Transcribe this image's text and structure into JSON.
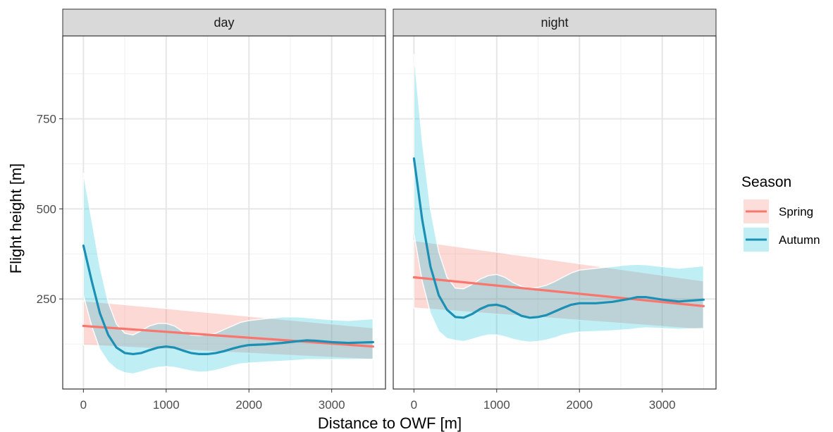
{
  "chart_data": {
    "type": "line",
    "xlabel": "Distance to OWF [m]",
    "ylabel": "Flight height [m]",
    "xlim": [
      -250,
      3650
    ],
    "ylim": [
      0,
      980
    ],
    "x_ticks": [
      0,
      1000,
      2000,
      3000
    ],
    "y_ticks": [
      250,
      500,
      750
    ],
    "x_minor": [
      500,
      1500,
      2500,
      3500
    ],
    "y_minor": [
      125,
      375,
      625,
      875
    ],
    "grid": true,
    "legend": {
      "title": "Season",
      "position": "right",
      "entries": [
        {
          "name": "Spring",
          "color": "#f8766d",
          "fill": "#f8766d"
        },
        {
          "name": "Autumn",
          "color": "#1c8fb5",
          "fill": "#00bfd9"
        }
      ]
    },
    "panels": [
      {
        "label": "day",
        "series": [
          {
            "name": "Spring",
            "x": [
              0,
              3500
            ],
            "y": [
              175,
              118
            ],
            "upper": [
              245,
              170
            ],
            "lower": [
              122,
              82
            ]
          },
          {
            "name": "Autumn",
            "x": [
              0,
              100,
              200,
              300,
              400,
              500,
              600,
              700,
              800,
              900,
              1000,
              1100,
              1200,
              1300,
              1400,
              1500,
              1600,
              1700,
              1800,
              1900,
              2000,
              2200,
              2400,
              2600,
              2700,
              2800,
              3000,
              3200,
              3500
            ],
            "y": [
              398,
              300,
              210,
              150,
              115,
              100,
              97,
              100,
              108,
              115,
              118,
              115,
              107,
              100,
              97,
              97,
              100,
              105,
              112,
              118,
              122,
              124,
              128,
              133,
              135,
              134,
              130,
              128,
              130
            ],
            "upper": [
              600,
              470,
              340,
              240,
              180,
              155,
              150,
              162,
              175,
              182,
              182,
              175,
              160,
              150,
              148,
              150,
              155,
              165,
              175,
              185,
              190,
              195,
              200,
              200,
              198,
              196,
              192,
              190,
              195
            ],
            "lower": [
              260,
              175,
              110,
              75,
              55,
              45,
              42,
              48,
              55,
              60,
              62,
              60,
              55,
              50,
              47,
              48,
              52,
              58,
              65,
              70,
              72,
              75,
              77,
              80,
              82,
              82,
              82,
              82,
              83
            ]
          }
        ]
      },
      {
        "label": "night",
        "series": [
          {
            "name": "Spring",
            "x": [
              0,
              3500
            ],
            "y": [
              310,
              230
            ],
            "upper": [
              412,
              300
            ],
            "lower": [
              225,
              165
            ]
          },
          {
            "name": "Autumn",
            "x": [
              0,
              100,
              200,
              300,
              400,
              500,
              600,
              700,
              800,
              900,
              1000,
              1100,
              1200,
              1300,
              1400,
              1500,
              1600,
              1700,
              1800,
              1900,
              2000,
              2200,
              2400,
              2600,
              2700,
              2800,
              3000,
              3200,
              3500
            ],
            "y": [
              640,
              470,
              340,
              260,
              220,
              200,
              198,
              208,
              222,
              232,
              234,
              228,
              215,
              203,
              198,
              200,
              205,
              215,
              225,
              234,
              238,
              238,
              242,
              250,
              255,
              255,
              248,
              243,
              248
            ],
            "upper": [
              930,
              690,
              500,
              380,
              310,
              280,
              278,
              290,
              305,
              315,
              318,
              310,
              295,
              285,
              280,
              282,
              288,
              298,
              310,
              322,
              330,
              335,
              340,
              345,
              346,
              345,
              340,
              335,
              342
            ],
            "lower": [
              430,
              300,
              210,
              160,
              140,
              135,
              132,
              138,
              145,
              150,
              150,
              145,
              138,
              133,
              130,
              132,
              136,
              142,
              150,
              155,
              158,
              160,
              162,
              165,
              168,
              170,
              168,
              166,
              168
            ]
          }
        ]
      }
    ]
  }
}
